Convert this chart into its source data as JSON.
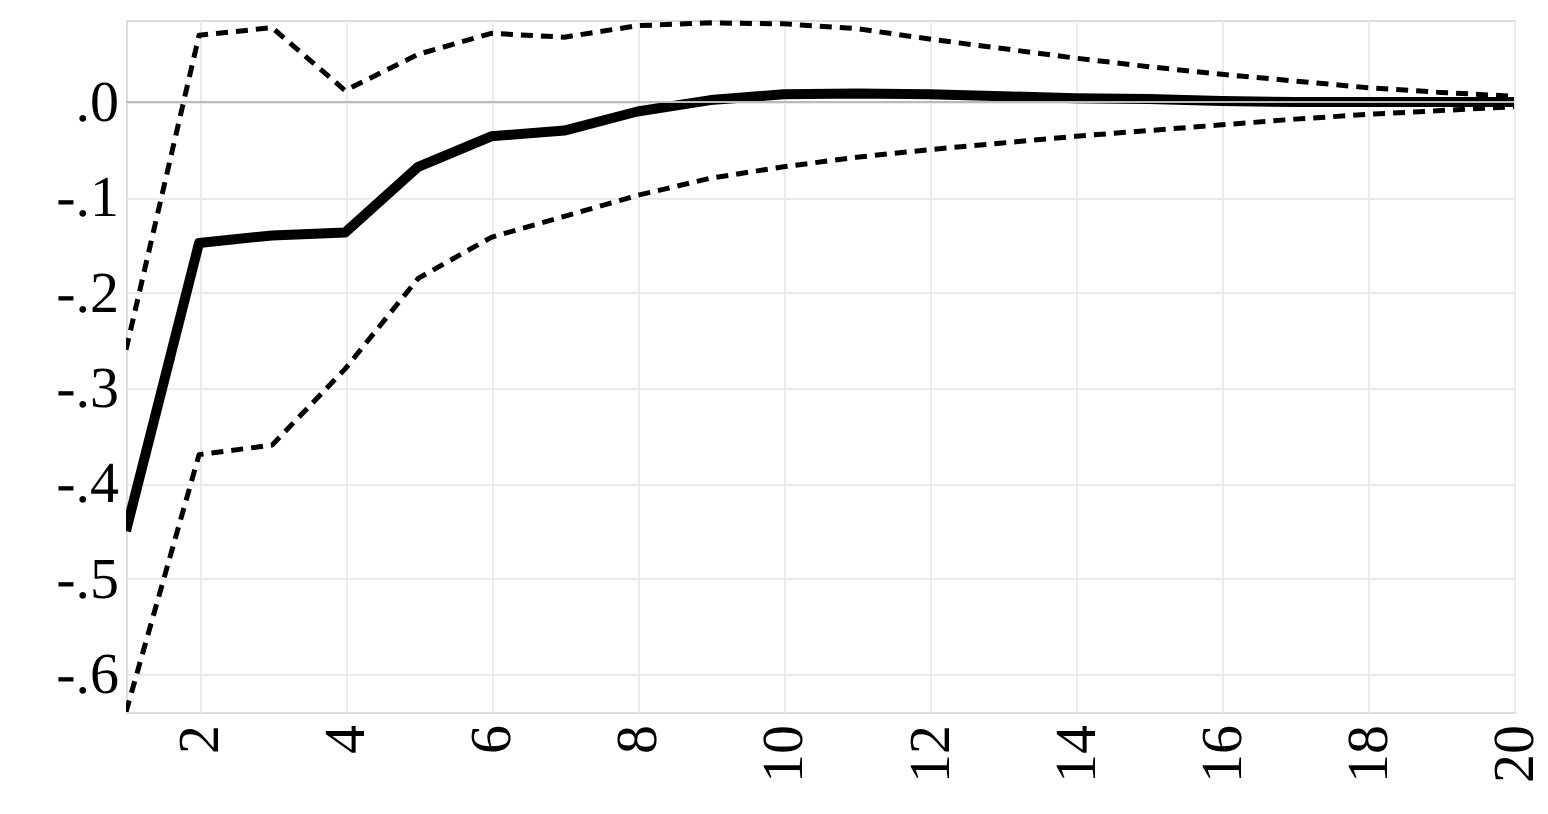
{
  "chart_data": {
    "type": "line",
    "x": [
      1,
      2,
      3,
      4,
      5,
      6,
      7,
      8,
      9,
      10,
      11,
      12,
      13,
      14,
      15,
      16,
      17,
      18,
      19,
      20
    ],
    "series": [
      {
        "color": "#000000",
        "line_style": "solid",
        "values": [
          -0.45,
          -0.148,
          -0.14,
          -0.137,
          -0.068,
          -0.036,
          -0.03,
          -0.01,
          0.002,
          0.008,
          0.009,
          0.008,
          0.006,
          0.004,
          0.003,
          0.001,
          0.0,
          0.0,
          0.0,
          0.0
        ]
      },
      {
        "color": "#000000",
        "line_style": "dashed",
        "values": [
          -0.26,
          0.07,
          0.078,
          0.012,
          0.05,
          0.072,
          0.068,
          0.08,
          0.083,
          0.082,
          0.077,
          0.066,
          0.056,
          0.046,
          0.037,
          0.029,
          0.022,
          0.015,
          0.01,
          0.006
        ]
      },
      {
        "color": "#000000",
        "line_style": "dashed",
        "values": [
          -0.64,
          -0.37,
          -0.36,
          -0.28,
          -0.185,
          -0.142,
          -0.12,
          -0.098,
          -0.08,
          -0.068,
          -0.058,
          -0.05,
          -0.043,
          -0.036,
          -0.03,
          -0.024,
          -0.018,
          -0.013,
          -0.009,
          -0.005
        ]
      }
    ],
    "xlim": [
      1,
      20
    ],
    "xticks": [
      2,
      4,
      6,
      8,
      10,
      12,
      14,
      16,
      18,
      20
    ],
    "ylim": [
      -0.64,
      0.086
    ],
    "yticks": [
      {
        "value": 0,
        "label": ".0"
      },
      {
        "value": -0.1,
        "label": "-.1"
      },
      {
        "value": -0.2,
        "label": "-.2"
      },
      {
        "value": -0.3,
        "label": "-.3"
      },
      {
        "value": -0.4,
        "label": "-.4"
      },
      {
        "value": -0.5,
        "label": "-.5"
      },
      {
        "value": -0.6,
        "label": "-.6"
      }
    ],
    "ref_lines": [
      {
        "axis": "y",
        "value": 0,
        "color": "#bbbbbb",
        "line_style": "solid"
      }
    ],
    "grid": true
  }
}
